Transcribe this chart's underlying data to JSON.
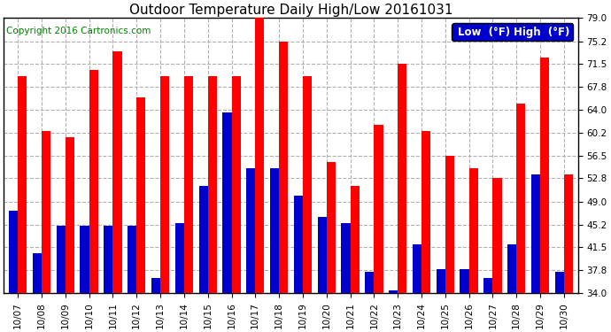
{
  "title": "Outdoor Temperature Daily High/Low 20161031",
  "copyright": "Copyright 2016 Cartronics.com",
  "legend_low": "Low  (°F)",
  "legend_high": "High  (°F)",
  "dates": [
    "10/07",
    "10/08",
    "10/09",
    "10/10",
    "10/11",
    "10/12",
    "10/13",
    "10/14",
    "10/15",
    "10/16",
    "10/17",
    "10/18",
    "10/19",
    "10/20",
    "10/21",
    "10/22",
    "10/23",
    "10/24",
    "10/25",
    "10/26",
    "10/27",
    "10/28",
    "10/29",
    "10/30"
  ],
  "highs": [
    69.5,
    60.5,
    59.5,
    70.5,
    73.5,
    66.0,
    69.5,
    69.5,
    69.5,
    69.5,
    79.0,
    75.2,
    69.5,
    55.5,
    51.5,
    61.5,
    71.5,
    60.5,
    56.5,
    54.5,
    52.8,
    65.0,
    72.5,
    53.5
  ],
  "lows": [
    47.5,
    40.5,
    45.0,
    45.0,
    45.0,
    45.0,
    36.5,
    45.5,
    51.5,
    63.5,
    54.5,
    54.5,
    50.0,
    46.5,
    45.5,
    37.5,
    34.5,
    42.0,
    38.0,
    38.0,
    36.5,
    42.0,
    53.5,
    37.5
  ],
  "ylim_min": 34.0,
  "ylim_max": 79.0,
  "yticks": [
    34.0,
    37.8,
    41.5,
    45.2,
    49.0,
    52.8,
    56.5,
    60.2,
    64.0,
    67.8,
    71.5,
    75.2,
    79.0
  ],
  "bar_width": 0.38,
  "high_color": "#ff0000",
  "low_color": "#0000cc",
  "background_color": "#ffffff",
  "grid_color": "#b0b0b0",
  "title_fontsize": 11,
  "tick_fontsize": 7.5,
  "copyright_fontsize": 7.5,
  "legend_fontsize": 8.5
}
